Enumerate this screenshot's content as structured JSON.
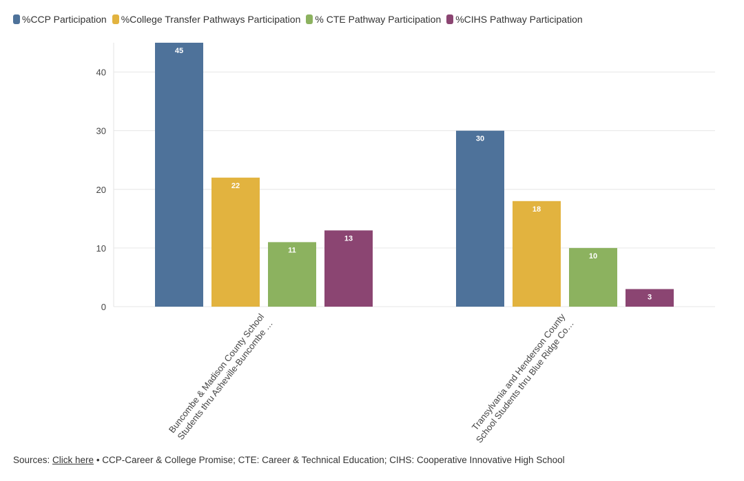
{
  "legend": {
    "items": [
      {
        "label": "%CCP Participation",
        "color": "#4e729a"
      },
      {
        "label": "%College Transfer Pathways Participation",
        "color": "#e2b33f"
      },
      {
        "label": "% CTE Pathway Participation",
        "color": "#8cb25f"
      },
      {
        "label": "%CIHS Pathway Participation",
        "color": "#8b4572"
      }
    ]
  },
  "footer": {
    "sources_prefix": "Sources: ",
    "link_text": "Click here",
    "note": " • CCP-Career & College Promise; CTE: Career & Technical Education; CIHS: Cooperative Innovative High School"
  },
  "chart_data": {
    "type": "bar",
    "title": "",
    "xlabel": "",
    "ylabel": "",
    "ylim": [
      0,
      45
    ],
    "yticks": [
      0,
      10,
      20,
      30,
      40
    ],
    "grid": true,
    "legend_position": "top-left",
    "categories": [
      [
        "Buncombe & Madison County School",
        "Students thru Asheville-Buncombe …"
      ],
      [
        "Transylvania and Henderson County",
        "School Students thru Blue Ridge Co…"
      ]
    ],
    "series": [
      {
        "name": "%CCP Participation",
        "color": "#4e729a",
        "values": [
          45,
          30
        ]
      },
      {
        "name": "%College Transfer Pathways Participation",
        "color": "#e2b33f",
        "values": [
          22,
          18
        ]
      },
      {
        "name": "% CTE Pathway Participation",
        "color": "#8cb25f",
        "values": [
          11,
          10
        ]
      },
      {
        "name": "%CIHS Pathway Participation",
        "color": "#8b4572",
        "values": [
          13,
          3
        ]
      }
    ]
  }
}
